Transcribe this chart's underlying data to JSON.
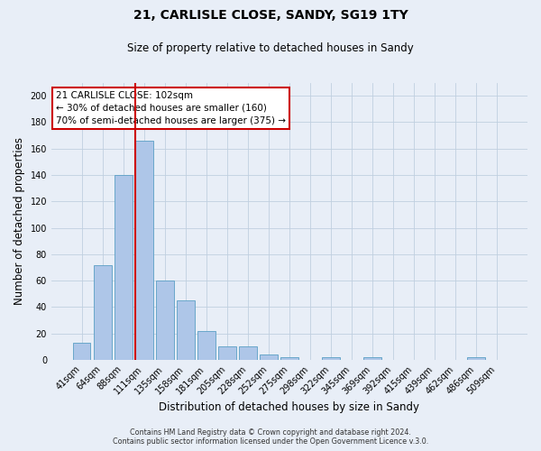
{
  "title": "21, CARLISLE CLOSE, SANDY, SG19 1TY",
  "subtitle": "Size of property relative to detached houses in Sandy",
  "xlabel": "Distribution of detached houses by size in Sandy",
  "ylabel": "Number of detached properties",
  "bar_labels": [
    "41sqm",
    "64sqm",
    "88sqm",
    "111sqm",
    "135sqm",
    "158sqm",
    "181sqm",
    "205sqm",
    "228sqm",
    "252sqm",
    "275sqm",
    "298sqm",
    "322sqm",
    "345sqm",
    "369sqm",
    "392sqm",
    "415sqm",
    "439sqm",
    "462sqm",
    "486sqm",
    "509sqm"
  ],
  "bar_values": [
    13,
    72,
    140,
    166,
    60,
    45,
    22,
    10,
    10,
    4,
    2,
    0,
    2,
    0,
    2,
    0,
    0,
    0,
    0,
    2,
    0
  ],
  "bar_color": "#aec6e8",
  "bar_edge_color": "#5a9fc5",
  "vline_color": "#cc0000",
  "vline_x_index": 3,
  "ylim": [
    0,
    210
  ],
  "yticks": [
    0,
    20,
    40,
    60,
    80,
    100,
    120,
    140,
    160,
    180,
    200
  ],
  "annotation_title": "21 CARLISLE CLOSE: 102sqm",
  "annotation_line1": "← 30% of detached houses are smaller (160)",
  "annotation_line2": "70% of semi-detached houses are larger (375) →",
  "annotation_box_edgecolor": "#cc0000",
  "footer1": "Contains HM Land Registry data © Crown copyright and database right 2024.",
  "footer2": "Contains public sector information licensed under the Open Government Licence v.3.0.",
  "bg_color": "#e8eef7",
  "plot_bg_color": "#e8eef7",
  "grid_color": "#c0cfe0",
  "title_fontsize": 10,
  "subtitle_fontsize": 8.5,
  "tick_fontsize": 7,
  "axis_label_fontsize": 8.5,
  "annotation_fontsize": 7.5,
  "footer_fontsize": 5.8
}
